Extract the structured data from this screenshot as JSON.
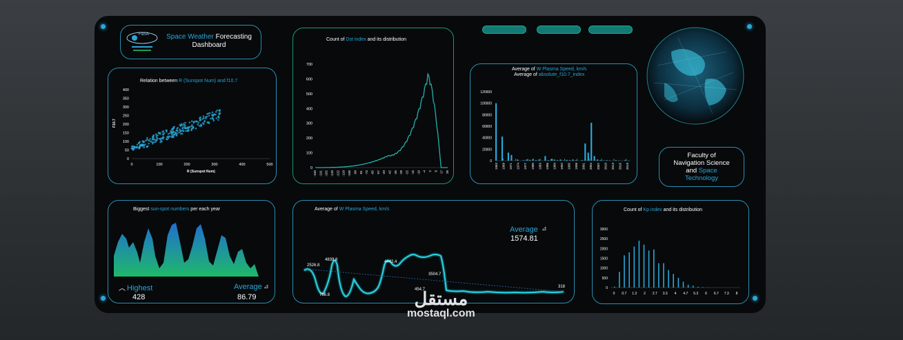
{
  "header": {
    "title_part1": "Space Weather",
    "title_part2": "Forecasting",
    "title_part3": "Dashboard"
  },
  "faculty": {
    "line1": "Faculty of",
    "line2": "Navigation Science",
    "line3": "and",
    "line3b": "Space",
    "line4": "Technology"
  },
  "scatter": {
    "title_a": "Relation between",
    "title_b": "R (Sunspot Num) and f10.7",
    "yticks": [
      "400",
      "350",
      "300",
      "250",
      "200",
      "150",
      "100",
      "50",
      "0"
    ],
    "xticks": [
      "0",
      "100",
      "200",
      "300",
      "400",
      "500"
    ],
    "xlabel": "R (Sunspot Num)",
    "ylabel": "F10.7"
  },
  "dst": {
    "title_a": "Count  of",
    "title_b": "Dst index",
    "title_c": "and its distribution",
    "yticks": [
      "700",
      "600",
      "500",
      "400",
      "300",
      "200",
      "100",
      "0"
    ],
    "xticks": [
      "-240",
      "-191",
      "-162",
      "-139",
      "-122",
      "-110",
      "-100",
      "-90",
      "-81",
      "-73",
      "-65",
      "-57",
      "-49",
      "-42",
      "-35",
      "-28",
      "-22",
      "-16",
      "-10",
      "-4",
      "2",
      "8",
      "17",
      "28"
    ]
  },
  "plasma_year": {
    "title_a": "Average of",
    "title_b": "W Plasma Speed, km/s",
    "title_c": "Average of",
    "title_d": "absolute_f10.7_index",
    "yticks": [
      "120000",
      "100000",
      "80000",
      "60000",
      "40000",
      "20000",
      "0"
    ],
    "xticks": [
      "1963",
      "1968",
      "1971",
      "1974",
      "1977",
      "1980",
      "1983",
      "1986",
      "1989",
      "1992",
      "1995",
      "1998",
      "2001",
      "2004",
      "2007",
      "2010",
      "2013",
      "2016",
      "2019"
    ]
  },
  "sunspot": {
    "title_a": "Biggest",
    "title_b": "sun-spot numbers",
    "title_c": "per each year",
    "highest_label": "Highest",
    "highest_value": "428",
    "average_label": "Average",
    "average_value": "86.79"
  },
  "plasma_line": {
    "title_a": "Average of",
    "title_b": "W Plasma Speed, km/s",
    "average_label": "Average",
    "average_value": "1574.81",
    "labels": [
      "2526.8",
      "4839.8",
      "4442.4",
      "3504.7",
      "766.8",
      "454.7",
      "318"
    ]
  },
  "kp": {
    "title_a": "Count of",
    "title_b": "Kp index",
    "title_c": "and its distribution",
    "yticks": [
      "3000",
      "2500",
      "2000",
      "1500",
      "1000",
      "500",
      "0"
    ],
    "xticks": [
      "0",
      "0.7",
      "1.3",
      "2",
      "2.7",
      "3.3",
      "4",
      "4.7",
      "5.3",
      "6",
      "6.7",
      "7.3",
      "8"
    ]
  },
  "watermark": {
    "arabic": "مستقل",
    "latin": "mostaql.com"
  },
  "colors": {
    "accent": "#2aa7d8",
    "green": "#1f9b63",
    "pill": "#127a72"
  }
}
